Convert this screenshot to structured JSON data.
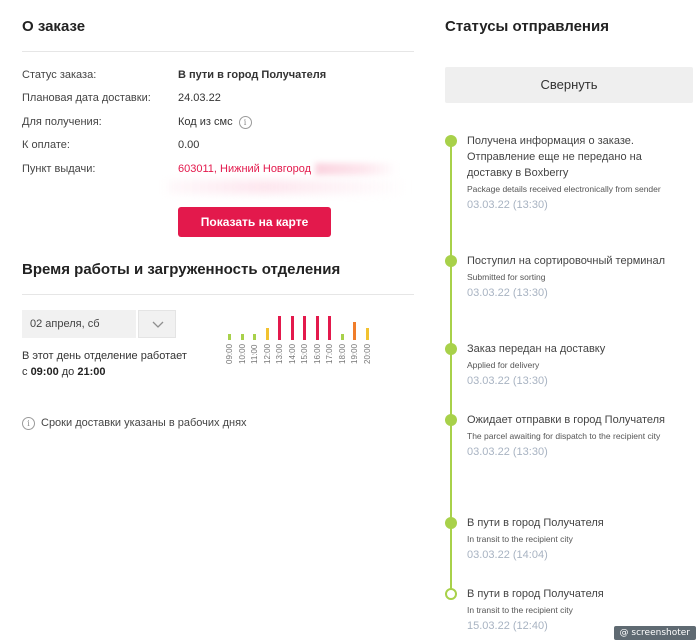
{
  "order": {
    "heading": "О заказе",
    "rows": [
      {
        "label": "Статус заказа:",
        "value": "В пути в город Получателя"
      },
      {
        "label": "Плановая дата доставки:",
        "value": "24.03.22"
      },
      {
        "label": "Для получения:",
        "value": "Код из смс"
      },
      {
        "label": "К оплате:",
        "value": "0.00"
      },
      {
        "label": "Пункт выдачи:",
        "value": "603011, Нижний Новгород"
      }
    ],
    "map_button": "Показать на карте"
  },
  "work": {
    "heading": "Время работы и загруженность отделения",
    "date_select": "02 апреля, сб",
    "text_line1": "В этот день отделение работает",
    "text_prefix": "с",
    "open": "09:00",
    "text_mid": "до",
    "close": "21:00"
  },
  "chart_data": {
    "type": "bar",
    "categories": [
      "09:00",
      "10:00",
      "11:00",
      "12:00",
      "13:00",
      "14:00",
      "15:00",
      "16:00",
      "17:00",
      "18:00",
      "19:00",
      "20:00"
    ],
    "values": [
      1,
      1,
      1,
      2,
      4,
      4,
      4,
      4,
      4,
      1,
      3,
      2
    ],
    "colors": [
      "#a8d14a",
      "#a8d14a",
      "#a8d14a",
      "#f2c230",
      "#e3194c",
      "#e3194c",
      "#e3194c",
      "#e3194c",
      "#e3194c",
      "#a8d14a",
      "#f07d2a",
      "#f2c230"
    ],
    "title": "",
    "xlabel": "",
    "ylabel": ""
  },
  "note": "Сроки доставки указаны в рабочих днях",
  "statuses": {
    "heading": "Статусы отправления",
    "collapse_button": "Свернуть",
    "steps": [
      {
        "title": "Получена информация о заказе. Отправление еще не передано на доставку в Boxberry",
        "en": "Package details received electronically from sender",
        "time": "03.03.22 (13:30)"
      },
      {
        "title": "Поступил на сортировочный терминал",
        "en": "Submitted for sorting",
        "time": "03.03.22 (13:30)"
      },
      {
        "title": "Заказ передан на доставку",
        "en": "Applied for delivery",
        "time": "03.03.22 (13:30)"
      },
      {
        "title": "Ожидает отправки в город Получателя",
        "en": "The parcel awaiting for dispatch to the recipient city",
        "time": "03.03.22 (13:30)"
      },
      {
        "title": "В пути в город Получателя",
        "en": "In transit to the recipient city",
        "time": "03.03.22 (14:04)"
      },
      {
        "title": "В пути в город Получателя",
        "en": "In transit to the recipient city",
        "time": "15.03.22 (12:40)"
      }
    ]
  },
  "watermark": "screenshoter"
}
